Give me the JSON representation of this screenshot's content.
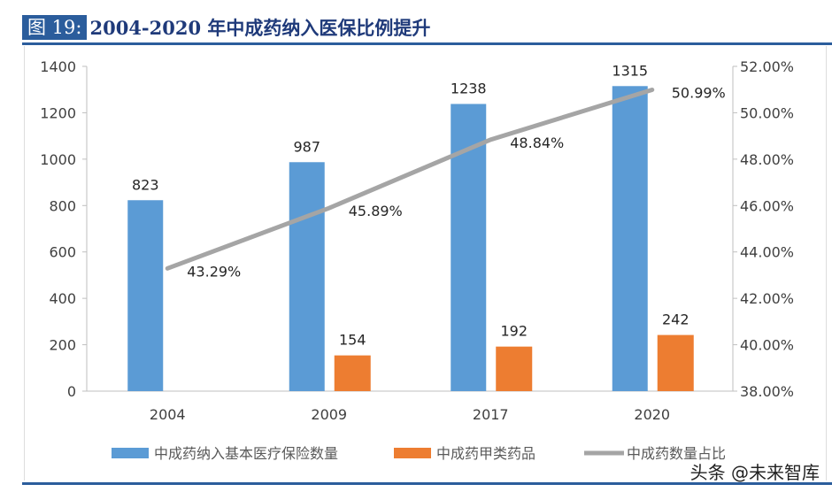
{
  "figure_label": "图 19:",
  "figure_title": "2004-2020 年中成药纳入医保比例提升",
  "watermark": "头条 @未来智库",
  "chart_data": {
    "type": "bar+line",
    "title": "",
    "categories": [
      "2004",
      "2009",
      "2017",
      "2020"
    ],
    "y_left": {
      "range": [
        0,
        1400
      ],
      "ticks": [
        "0",
        "200",
        "400",
        "600",
        "800",
        "1000",
        "1200",
        "1400"
      ]
    },
    "y_right": {
      "range": [
        38,
        52
      ],
      "ticks": [
        "38.00%",
        "40.00%",
        "42.00%",
        "44.00%",
        "46.00%",
        "48.00%",
        "50.00%",
        "52.00%"
      ]
    },
    "grid": false,
    "legend_position": "bottom",
    "series": [
      {
        "name": "中成药纳入基本医疗保险数量",
        "kind": "bar",
        "axis": "left",
        "color": "#5b9bd5",
        "values": [
          823,
          987,
          1238,
          1315
        ],
        "labels": [
          "823",
          "987",
          "1238",
          "1315"
        ]
      },
      {
        "name": "中成药甲类药品",
        "kind": "bar",
        "axis": "left",
        "color": "#ed7d31",
        "values": [
          null,
          154,
          192,
          242
        ],
        "labels": [
          "",
          "154",
          "192",
          "242"
        ]
      },
      {
        "name": "中成药数量占比",
        "kind": "line",
        "axis": "right",
        "color": "#a5a5a5",
        "values": [
          43.29,
          45.89,
          48.84,
          50.99
        ],
        "labels": [
          "43.29%",
          "45.89%",
          "48.84%",
          "50.99%"
        ]
      }
    ]
  }
}
